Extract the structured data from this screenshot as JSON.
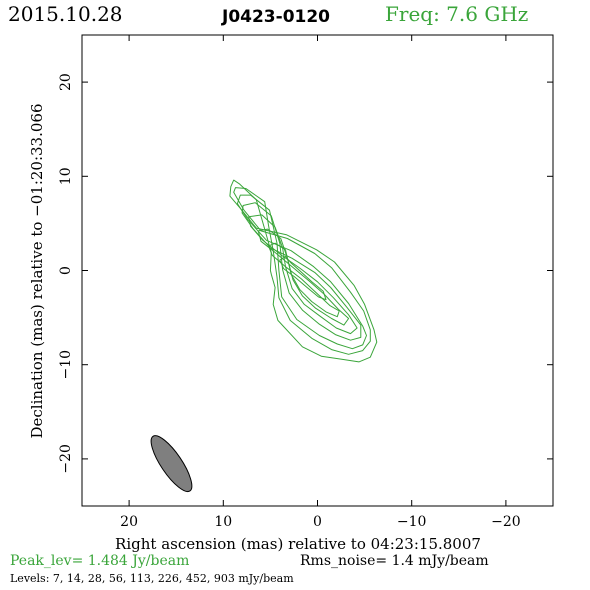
{
  "header": {
    "date": "2015.10.28",
    "source": "J0423-0120",
    "freq": "Freq: 7.6 GHz"
  },
  "footer": {
    "peak": "Peak_lev=  1.484 Jy/beam",
    "rms": "Rms_noise=  1.4 mJy/beam",
    "levels": "Levels:   7,  14,  28,  56, 113, 226, 452, 903 mJy/beam"
  },
  "colors": {
    "contour": "#3aa53a",
    "beam": "#7f7f7f",
    "peak_text": "#3aa53a",
    "freq_text": "#3aa53a"
  },
  "chart_data": {
    "type": "contour",
    "xlabel": "Right ascension (mas) relative to 04:23:15.8007",
    "ylabel": "Declination (mas) relative to −01:20:33.066",
    "xlim": [
      25,
      -25
    ],
    "ylim": [
      -25,
      25
    ],
    "xticks": [
      20,
      10,
      0,
      -10,
      -20
    ],
    "yticks": [
      20,
      10,
      0,
      -10,
      -20
    ],
    "xtick_labels": [
      "20",
      "10",
      "0",
      "−10",
      "−20"
    ],
    "ytick_labels": [
      "20",
      "10",
      "0",
      "−10",
      "−20"
    ],
    "contour_levels_mJy": [
      7,
      14,
      28,
      56,
      113,
      226,
      452,
      903
    ],
    "contours": [
      {
        "level": 7,
        "points": [
          [
            6.5,
            7.5
          ],
          [
            8.3,
            9.2
          ],
          [
            8.9,
            9.6
          ],
          [
            9.2,
            8.9
          ],
          [
            9.3,
            7.9
          ],
          [
            8.2,
            6.6
          ],
          [
            6.5,
            4.5
          ],
          [
            3.3,
            3.8
          ],
          [
            0.1,
            2.2
          ],
          [
            -1.8,
            0.9
          ],
          [
            -3.9,
            -1.6
          ],
          [
            -5,
            -3.6
          ],
          [
            -6,
            -6.3
          ],
          [
            -6.3,
            -7.6
          ],
          [
            -5.6,
            -9.2
          ],
          [
            -4.4,
            -9.7
          ],
          [
            -2.4,
            -9.4
          ],
          [
            -0.4,
            -9.1
          ],
          [
            1.6,
            -8.1
          ],
          [
            4.2,
            -5.3
          ],
          [
            4.7,
            -3.6
          ],
          [
            4.5,
            -1.8
          ],
          [
            4.9,
            -0.4
          ],
          [
            5,
            0
          ],
          [
            4.9,
            1.9
          ],
          [
            5.6,
            4.4
          ],
          [
            6.5,
            7.5
          ]
        ]
      },
      {
        "level": 14,
        "points": [
          [
            5.6,
            7.3
          ],
          [
            7.6,
            8.7
          ],
          [
            8.7,
            8.8
          ],
          [
            8.9,
            8.3
          ],
          [
            7.8,
            6.4
          ],
          [
            6,
            4.2
          ],
          [
            3.2,
            3.4
          ],
          [
            0.3,
            1.8
          ],
          [
            -1.5,
            0.3
          ],
          [
            -3.5,
            -2.3
          ],
          [
            -4.9,
            -4.3
          ],
          [
            -5.6,
            -6.3
          ],
          [
            -5.6,
            -7.5
          ],
          [
            -4.8,
            -8.5
          ],
          [
            -3.3,
            -8.9
          ],
          [
            -1.5,
            -8.4
          ],
          [
            0.6,
            -7.2
          ],
          [
            2.9,
            -5.3
          ],
          [
            4.1,
            -2.9
          ],
          [
            4.3,
            -0.7
          ],
          [
            4.7,
            2.1
          ],
          [
            5.2,
            4.8
          ],
          [
            5.6,
            7.3
          ]
        ]
      },
      {
        "level": 28,
        "points": [
          [
            5.1,
            6.4
          ],
          [
            7.1,
            8
          ],
          [
            8.2,
            8
          ],
          [
            8.5,
            7.1
          ],
          [
            7.4,
            5.4
          ],
          [
            5.4,
            3.2
          ],
          [
            2.8,
            2.1
          ],
          [
            0.4,
            0.4
          ],
          [
            -1.4,
            -1.2
          ],
          [
            -3.3,
            -3.5
          ],
          [
            -4.8,
            -5.9
          ],
          [
            -5.2,
            -6.9
          ],
          [
            -4.8,
            -7.9
          ],
          [
            -3.7,
            -8.3
          ],
          [
            -2.1,
            -7.8
          ],
          [
            -0.2,
            -6.9
          ],
          [
            2.2,
            -5.2
          ],
          [
            3.8,
            -2.8
          ],
          [
            4.1,
            0
          ],
          [
            4.3,
            2.9
          ],
          [
            5.1,
            6.4
          ]
        ]
      },
      {
        "level": 56,
        "points": [
          [
            4.9,
            5.8
          ],
          [
            6.6,
            7.2
          ],
          [
            7.9,
            6.9
          ],
          [
            8,
            6.1
          ],
          [
            6.8,
            4.4
          ],
          [
            5,
            2.4
          ],
          [
            2.7,
            1.3
          ],
          [
            0.3,
            -0.2
          ],
          [
            -1.4,
            -1.8
          ],
          [
            -3.2,
            -4
          ],
          [
            -4.6,
            -5.8
          ],
          [
            -4.6,
            -7.1
          ],
          [
            -3.5,
            -7.4
          ],
          [
            -1.9,
            -6.8
          ],
          [
            -0.2,
            -5.7
          ],
          [
            1.6,
            -4.2
          ],
          [
            3,
            -2.4
          ],
          [
            3.7,
            0.1
          ],
          [
            4,
            2.9
          ],
          [
            4.9,
            5.8
          ]
        ]
      },
      {
        "level": 113,
        "points": [
          [
            4.5,
            4.6
          ],
          [
            5.9,
            5.9
          ],
          [
            7.3,
            5.7
          ],
          [
            7.1,
            4.7
          ],
          [
            5.8,
            3.2
          ],
          [
            3.8,
            1.6
          ],
          [
            1.8,
            0.2
          ],
          [
            0,
            -1.2
          ],
          [
            -1.7,
            -2.9
          ],
          [
            -3.3,
            -4.7
          ],
          [
            -4.2,
            -6.1
          ],
          [
            -3.5,
            -6.7
          ],
          [
            -2,
            -6.1
          ],
          [
            -0.2,
            -4.8
          ],
          [
            1.4,
            -3.6
          ],
          [
            2.7,
            -1.9
          ],
          [
            3.4,
            0.4
          ],
          [
            3.7,
            2.4
          ],
          [
            4.5,
            4.6
          ]
        ]
      },
      {
        "level": 226,
        "points": [
          [
            3.9,
            3.4
          ],
          [
            5.3,
            4.4
          ],
          [
            6.3,
            4.2
          ],
          [
            6,
            3.1
          ],
          [
            4.6,
            2
          ],
          [
            2.7,
            0.4
          ],
          [
            0.9,
            -1.1
          ],
          [
            -0.7,
            -2.5
          ],
          [
            -2.2,
            -4.1
          ],
          [
            -3.3,
            -5.1
          ],
          [
            -2.8,
            -5.8
          ],
          [
            -1.5,
            -5.1
          ],
          [
            0.2,
            -4
          ],
          [
            1.6,
            -2.7
          ],
          [
            2.6,
            -1
          ],
          [
            3.2,
            1.3
          ],
          [
            3.9,
            3.4
          ]
        ]
      },
      {
        "level": 452,
        "points": [
          [
            3.4,
            2.2
          ],
          [
            4.5,
            2.9
          ],
          [
            5.2,
            2.6
          ],
          [
            4.8,
            1.6
          ],
          [
            3.4,
            0.4
          ],
          [
            1.7,
            -0.9
          ],
          [
            0.1,
            -2.4
          ],
          [
            -1.3,
            -3.7
          ],
          [
            -2.3,
            -4.3
          ],
          [
            -2.1,
            -4.9
          ],
          [
            -0.9,
            -4.4
          ],
          [
            0.6,
            -3.3
          ],
          [
            1.9,
            -2
          ],
          [
            2.8,
            -0.4
          ],
          [
            3.4,
            2.2
          ]
        ]
      },
      {
        "level": 903,
        "points": [
          [
            2.8,
            0.8
          ],
          [
            3.4,
            1.5
          ],
          [
            4,
            1.1
          ],
          [
            3.6,
            0.2
          ],
          [
            2.4,
            -0.7
          ],
          [
            1.1,
            -1.8
          ],
          [
            -0.1,
            -2.8
          ],
          [
            -0.9,
            -3.1
          ],
          [
            -0.6,
            -2.2
          ],
          [
            0.6,
            -1.2
          ],
          [
            1.8,
            -0.1
          ],
          [
            2.8,
            0.8
          ]
        ]
      }
    ],
    "beam": {
      "center": [
        15.5,
        -20.5
      ],
      "major_mas": 7,
      "minor_mas": 2.2,
      "pa_deg": -34
    }
  }
}
